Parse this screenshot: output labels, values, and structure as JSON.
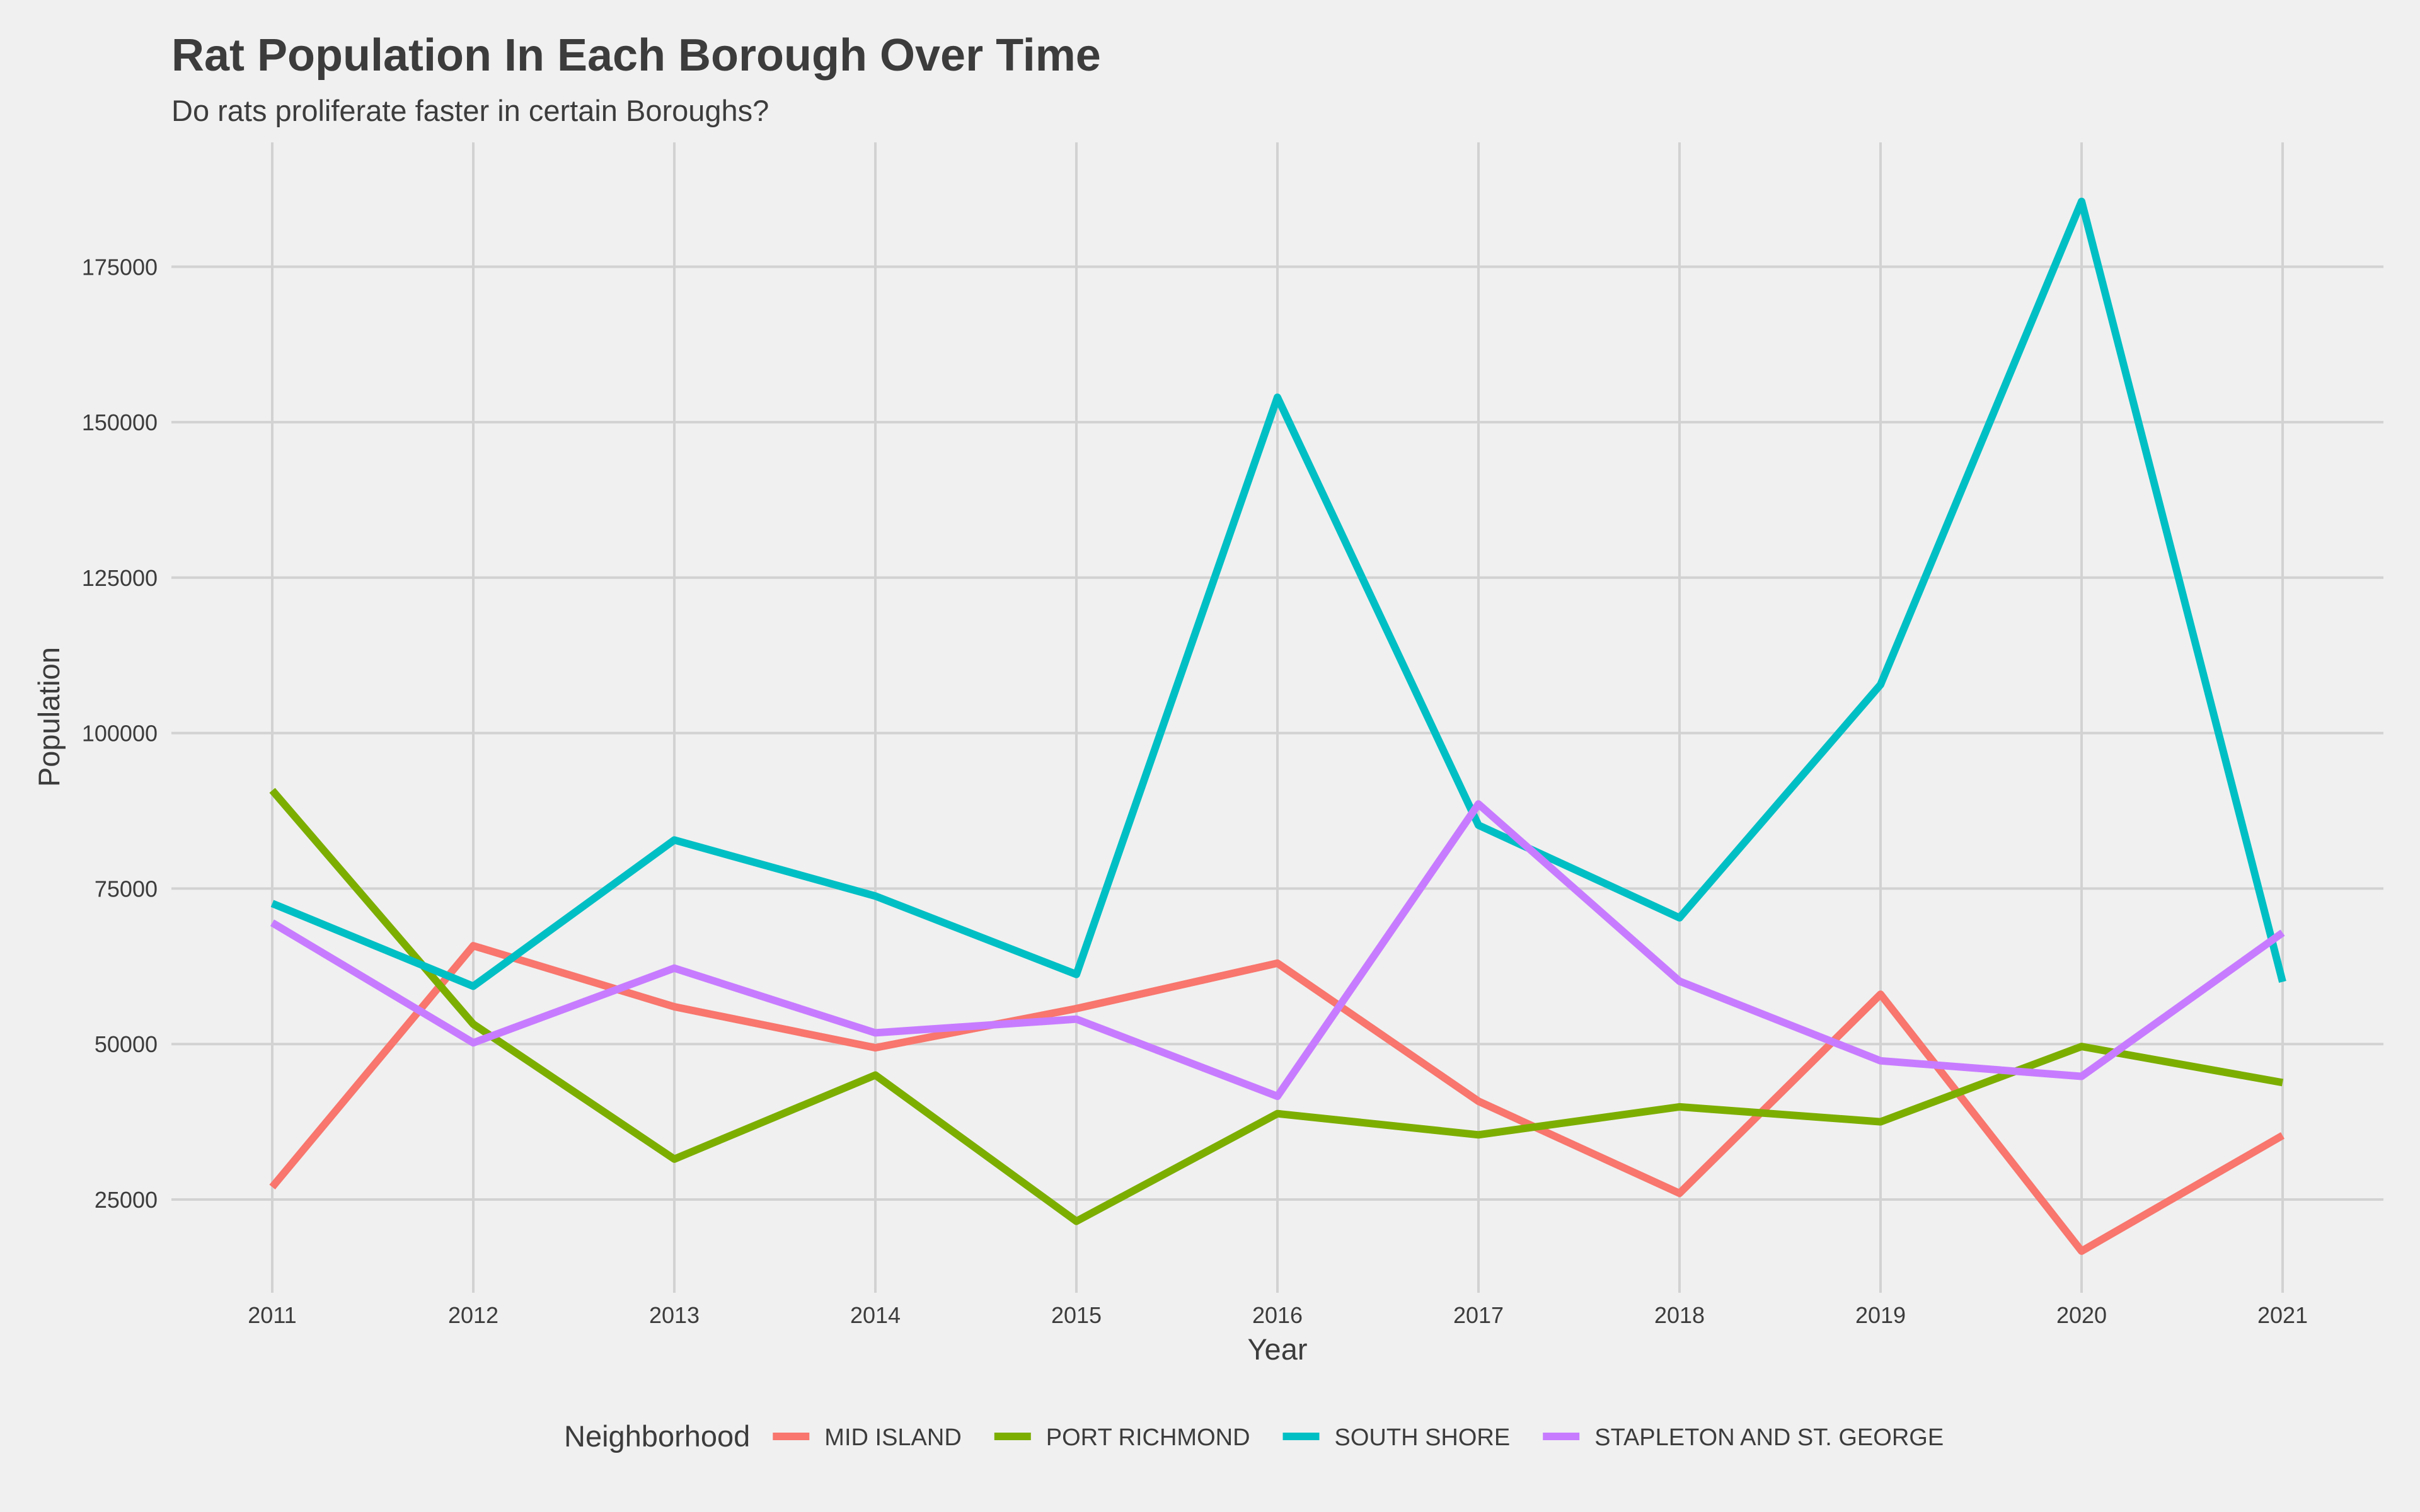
{
  "chart_data": {
    "type": "line",
    "title": "Rat Population In Each Borough Over Time",
    "subtitle": "Do rats proliferate faster in certain Boroughs?",
    "xlabel": "Year",
    "ylabel": "Population",
    "x": [
      2011,
      2012,
      2013,
      2014,
      2015,
      2016,
      2017,
      2018,
      2019,
      2020,
      2021
    ],
    "x_ticks": [
      "2011",
      "2012",
      "2013",
      "2014",
      "2015",
      "2016",
      "2017",
      "2018",
      "2019",
      "2020",
      "2021"
    ],
    "y_ticks": [
      "25000",
      "50000",
      "75000",
      "100000",
      "125000",
      "150000",
      "175000"
    ],
    "y_tick_values": [
      25000,
      50000,
      75000,
      100000,
      125000,
      150000,
      175000
    ],
    "ylim": [
      10000,
      195000
    ],
    "grid": true,
    "legend_position": "bottom",
    "legend_title": "Neighborhood",
    "series": [
      {
        "name": "MID ISLAND",
        "color": "#f8766d",
        "values": [
          27000,
          65800,
          56000,
          49400,
          55700,
          63000,
          40800,
          26000,
          58000,
          16700,
          35300
        ]
      },
      {
        "name": "PORT RICHMOND",
        "color": "#7cae00",
        "values": [
          90800,
          53200,
          31500,
          45000,
          21500,
          38800,
          35400,
          39900,
          37500,
          49600,
          43800
        ]
      },
      {
        "name": "SOUTH SHORE",
        "color": "#00bfc4",
        "values": [
          72600,
          59300,
          82800,
          73800,
          61200,
          154000,
          85200,
          70300,
          107800,
          185500,
          60000
        ]
      },
      {
        "name": "STAPLETON AND ST. GEORGE",
        "color": "#c77cff",
        "values": [
          69500,
          50200,
          62200,
          51800,
          54000,
          41600,
          88600,
          60100,
          47300,
          44800,
          67900
        ]
      }
    ]
  }
}
